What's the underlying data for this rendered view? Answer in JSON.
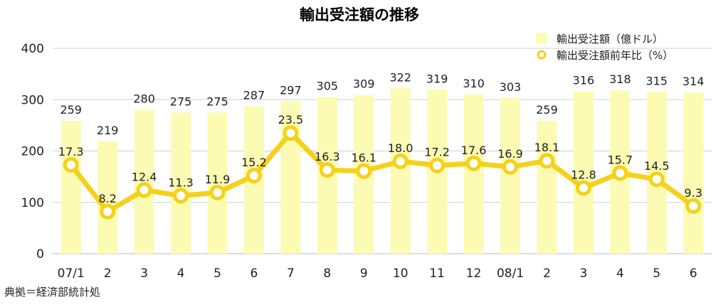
{
  "chart_data": {
    "type": "bar+line",
    "title": "輸出受注額の推移",
    "categories": [
      "07/1",
      "2",
      "3",
      "4",
      "5",
      "6",
      "7",
      "8",
      "9",
      "10",
      "11",
      "12",
      "08/1",
      "2",
      "3",
      "4",
      "5",
      "6"
    ],
    "series": [
      {
        "name": "輸出受注額（億ドル）",
        "type": "bar",
        "color": "#fbfbb4",
        "values": [
          259,
          219,
          280,
          275,
          275,
          287,
          297,
          305,
          309,
          322,
          319,
          310,
          303,
          259,
          316,
          318,
          315,
          314
        ]
      },
      {
        "name": "輸出受注額前年比（%）",
        "type": "line",
        "color": "#f5d11b",
        "values": [
          17.3,
          8.2,
          12.4,
          11.3,
          11.9,
          15.2,
          23.5,
          16.3,
          16.1,
          18.0,
          17.2,
          17.6,
          16.9,
          18.1,
          12.8,
          15.7,
          14.5,
          9.3
        ],
        "labels": [
          "17.3",
          "8.2",
          "12.4",
          "11.3",
          "11.9",
          "15.2",
          "23.5",
          "16.3",
          "16.1",
          "18.0",
          "17.2",
          "17.6",
          "16.9",
          "18.1",
          "12.8",
          "15.7",
          "14.5",
          "9.3"
        ]
      }
    ],
    "yticks": [
      "0",
      "100",
      "200",
      "300",
      "400"
    ],
    "ylim": [
      0,
      400
    ],
    "line_scale": "line values plotted at 10x on the bar axis",
    "grid": true,
    "legend": "top-right"
  },
  "source": "典拠＝経済部統計処"
}
